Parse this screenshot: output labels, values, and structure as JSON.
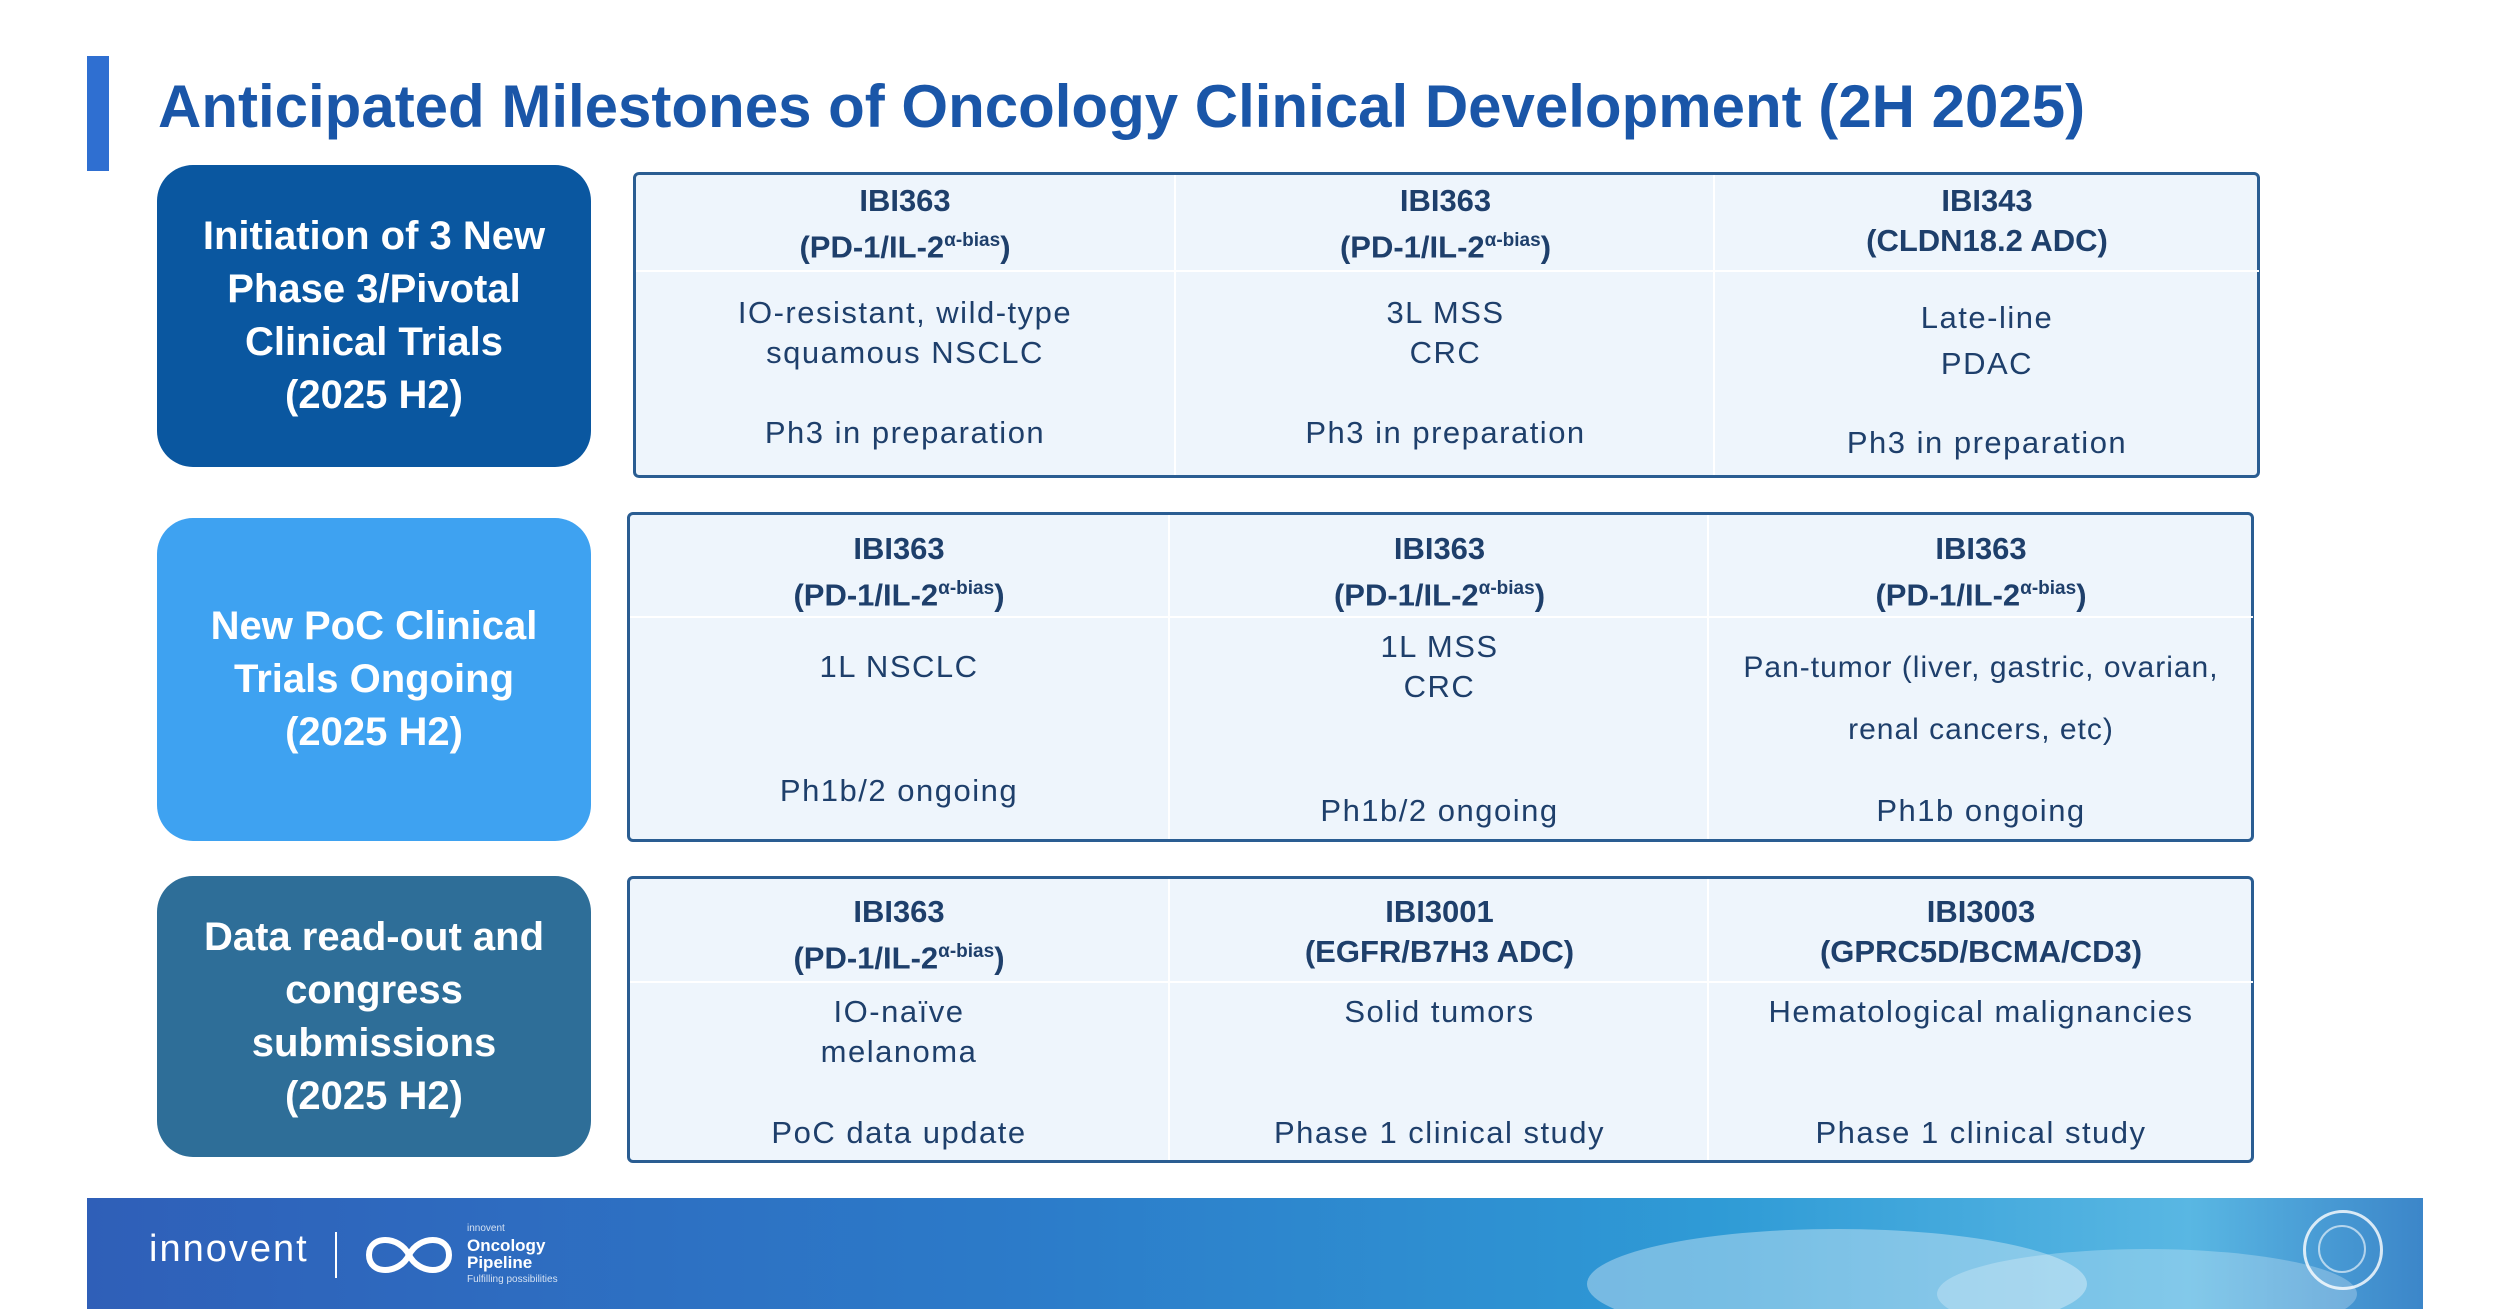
{
  "title": "Anticipated Milestones of Oncology Clinical Development (2H 2025)",
  "sections": [
    {
      "category": [
        "Initiation of 3 New",
        "Phase 3/Pivotal",
        "Clinical Trials",
        "(2025 H2)"
      ],
      "color": "#0a57a0",
      "columns": [
        {
          "drug": "IBI363",
          "target": "(PD-1/IL-2",
          "target_sup": "α-bias",
          "target_end": ")",
          "indication": [
            "IO-resistant, wild-type",
            "squamous NSCLC"
          ],
          "status": "Ph3 in preparation"
        },
        {
          "drug": "IBI363",
          "target": "(PD-1/IL-2",
          "target_sup": "α-bias",
          "target_end": ")",
          "indication": [
            "3L MSS",
            "CRC"
          ],
          "status": "Ph3 in preparation"
        },
        {
          "drug": "IBI343",
          "target": "(CLDN18.2 ADC)",
          "target_sup": "",
          "target_end": "",
          "indication": [
            "Late-line",
            "PDAC"
          ],
          "status": "Ph3 in preparation"
        }
      ]
    },
    {
      "category": [
        "New PoC Clinical",
        "Trials Ongoing",
        "(2025 H2)"
      ],
      "color": "#3ea2f1",
      "columns": [
        {
          "drug": "IBI363",
          "target": "(PD-1/IL-2",
          "target_sup": "α-bias",
          "target_end": ")",
          "indication": [
            "1L NSCLC"
          ],
          "status": "Ph1b/2 ongoing"
        },
        {
          "drug": "IBI363",
          "target": "(PD-1/IL-2",
          "target_sup": "α-bias",
          "target_end": ")",
          "indication": [
            "1L MSS",
            "CRC"
          ],
          "status": "Ph1b/2 ongoing"
        },
        {
          "drug": "IBI363",
          "target": "(PD-1/IL-2",
          "target_sup": "α-bias",
          "target_end": ")",
          "indication": [
            "Pan-tumor (liver, gastric, ovarian,",
            "renal cancers, etc)"
          ],
          "status": "Ph1b ongoing"
        }
      ]
    },
    {
      "category": [
        "Data read-out and",
        "congress",
        "submissions",
        "(2025 H2)"
      ],
      "color": "#2e6e98",
      "columns": [
        {
          "drug": "IBI363",
          "target": "(PD-1/IL-2",
          "target_sup": "α-bias",
          "target_end": ")",
          "indication": [
            "IO-naïve",
            "melanoma"
          ],
          "status": "PoC data update"
        },
        {
          "drug": "IBI3001",
          "target": "(EGFR/B7H3 ADC)",
          "target_sup": "",
          "target_end": "",
          "indication": [
            "Solid tumors"
          ],
          "status": "Phase 1 clinical study"
        },
        {
          "drug": "IBI3003",
          "target": "(GPRC5D/BCMA/CD3)",
          "target_sup": "",
          "target_end": "",
          "indication": [
            "Hematological malignancies"
          ],
          "status": "Phase 1 clinical study"
        }
      ]
    }
  ],
  "footer": {
    "brand": "innovent",
    "pipeline_top": "innovent",
    "pipeline_1": "Oncology",
    "pipeline_2": "Pipeline",
    "pipeline_tagline": "Fulfilling possibilities",
    "logo_icon": "infinity-icon",
    "seal_icon": "seal-icon"
  }
}
